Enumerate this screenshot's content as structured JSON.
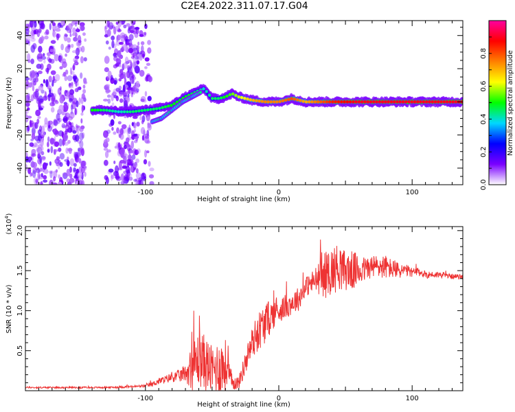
{
  "title": "C2E4.2022.311.07.17.G04",
  "chart_data": [
    {
      "type": "heatmap",
      "title": "C2E4.2022.311.07.17.G04",
      "xlabel": "Height of straight line (km)",
      "ylabel": "Frequency (Hz)",
      "xlim": [
        -190,
        138
      ],
      "ylim": [
        -50,
        49
      ],
      "xticks": [
        -100,
        0,
        100
      ],
      "xtick_labels": [
        "-100",
        "0",
        "100"
      ],
      "yticks": [
        -40,
        -20,
        0,
        20,
        40
      ],
      "ytick_labels": [
        "-40",
        "-20",
        "0",
        "20",
        "40"
      ],
      "grid": false,
      "colorbar": {
        "label": "Normalized spectral amplitude",
        "range": [
          0,
          1
        ],
        "ticks": [
          0.0,
          0.2,
          0.4,
          0.6,
          0.8
        ],
        "tick_labels": [
          "0.0",
          "0.2",
          "0.4",
          "0.6",
          "0.8"
        ],
        "colormap": [
          "#ffffff",
          "#7a00ff",
          "#0000ff",
          "#00d8ff",
          "#00ff00",
          "#ffff00",
          "#ff8000",
          "#ff0000",
          "#ff00a0"
        ]
      },
      "ridge": {
        "x": [
          -140,
          -130,
          -120,
          -110,
          -100,
          -90,
          -80,
          -70,
          -62,
          -56,
          -50,
          -45,
          -40,
          -35,
          -30,
          -20,
          -10,
          0,
          10,
          20,
          40,
          60,
          80,
          100,
          138
        ],
        "y": [
          -5,
          -5,
          -6,
          -6,
          -5,
          -4,
          -2,
          3,
          6,
          8,
          2,
          2,
          3,
          5,
          3,
          1,
          0,
          0,
          2,
          0,
          0,
          0,
          0,
          0,
          0
        ],
        "amplitude": [
          0.5,
          0.45,
          0.4,
          0.45,
          0.45,
          0.45,
          0.5,
          0.5,
          0.45,
          0.4,
          0.45,
          0.45,
          0.5,
          0.55,
          0.6,
          0.7,
          0.75,
          0.75,
          0.8,
          0.7,
          0.85,
          0.9,
          0.9,
          0.9,
          0.9
        ]
      },
      "secondary_branch": {
        "x": [
          -95,
          -88,
          -80,
          -72,
          -65,
          -58
        ],
        "y": [
          -12,
          -10,
          -5,
          0,
          3,
          6
        ]
      },
      "noise_region_x": [
        -190,
        -100
      ]
    },
    {
      "type": "line",
      "xlabel": "Height of straight line (km)",
      "ylabel": "SNR (10 * v/v)",
      "y_multiplier": "(x10^4)",
      "xlim": [
        -190,
        138
      ],
      "ylim": [
        0,
        2.05
      ],
      "xticks": [
        -100,
        0,
        100
      ],
      "xtick_labels": [
        "-100",
        "0",
        "100"
      ],
      "yticks": [
        0.5,
        1.0,
        1.5,
        2.0
      ],
      "ytick_labels": [
        "0.5",
        "1.0",
        "1.5",
        "2.0"
      ],
      "grid": false,
      "series": [
        {
          "color": "#ee3333",
          "x": [
            -190,
            -170,
            -150,
            -130,
            -110,
            -100,
            -95,
            -90,
            -85,
            -80,
            -75,
            -70,
            -65,
            -60,
            -55,
            -50,
            -45,
            -40,
            -35,
            -30,
            -25,
            -20,
            -15,
            -10,
            -5,
            0,
            5,
            10,
            15,
            20,
            25,
            30,
            35,
            40,
            45,
            50,
            55,
            60,
            65,
            70,
            75,
            80,
            85,
            90,
            95,
            100,
            105,
            110,
            115,
            120,
            125,
            130,
            138
          ],
          "y": [
            0.04,
            0.04,
            0.04,
            0.04,
            0.05,
            0.06,
            0.08,
            0.12,
            0.14,
            0.17,
            0.18,
            0.22,
            0.3,
            0.4,
            0.35,
            0.25,
            0.3,
            0.3,
            0.1,
            0.1,
            0.35,
            0.6,
            0.75,
            0.85,
            0.95,
            1.0,
            1.05,
            1.1,
            1.15,
            1.3,
            1.35,
            1.4,
            1.45,
            1.5,
            1.55,
            1.5,
            1.5,
            1.5,
            1.52,
            1.55,
            1.55,
            1.55,
            1.52,
            1.5,
            1.5,
            1.48,
            1.48,
            1.45,
            1.45,
            1.45,
            1.44,
            1.43,
            1.42
          ],
          "noise_amplitude": [
            0.01,
            0.01,
            0.01,
            0.01,
            0.015,
            0.02,
            0.03,
            0.04,
            0.05,
            0.06,
            0.08,
            0.1,
            0.3,
            0.35,
            0.35,
            0.3,
            0.35,
            0.35,
            0.1,
            0.08,
            0.15,
            0.2,
            0.25,
            0.25,
            0.2,
            0.15,
            0.15,
            0.15,
            0.15,
            0.12,
            0.15,
            0.2,
            0.3,
            0.3,
            0.3,
            0.25,
            0.25,
            0.2,
            0.15,
            0.15,
            0.15,
            0.15,
            0.12,
            0.1,
            0.08,
            0.06,
            0.05,
            0.05,
            0.04,
            0.04,
            0.03,
            0.03,
            0.03
          ]
        }
      ]
    }
  ]
}
